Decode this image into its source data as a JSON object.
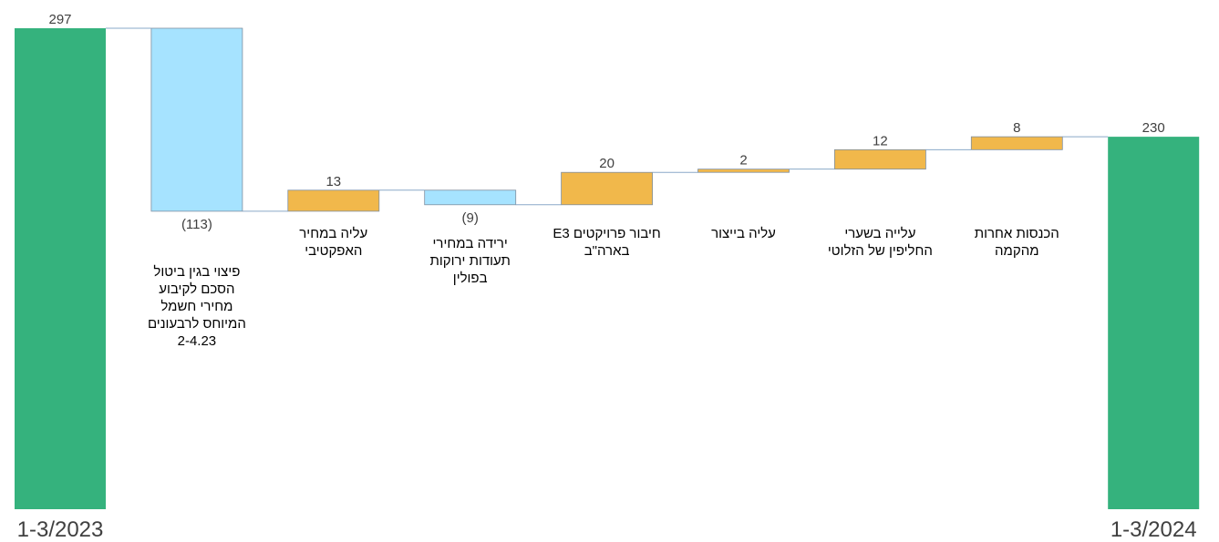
{
  "chart_data": {
    "type": "waterfall",
    "colors": {
      "total": "#35B27D",
      "increase": "#F1B84B",
      "decrease": "#A6E3FF",
      "connector": "#8AA9C8"
    },
    "ylim": [
      0,
      297
    ],
    "bars": [
      {
        "kind": "total",
        "value": 297,
        "value_label": "297",
        "category": "",
        "end_label": "1-3/2023"
      },
      {
        "kind": "decrease",
        "value": -113,
        "value_label": "(113)",
        "category": "פיצוי בגין ביטול הסכם לקיבוע מחירי חשמל המיוחס לרבעונים 2-4.23",
        "end_label": ""
      },
      {
        "kind": "increase",
        "value": 13,
        "value_label": "13",
        "category": "עליה במחיר האפקטיבי",
        "end_label": ""
      },
      {
        "kind": "decrease",
        "value": -9,
        "value_label": "(9)",
        "category": "ירידה במחירי תעודות ירוקות בפולין",
        "end_label": ""
      },
      {
        "kind": "increase",
        "value": 20,
        "value_label": "20",
        "category": "חיבור פרויקטים E3 בארה\"ב",
        "end_label": ""
      },
      {
        "kind": "increase",
        "value": 2,
        "value_label": "2",
        "category": "עליה בייצור",
        "end_label": ""
      },
      {
        "kind": "increase",
        "value": 12,
        "value_label": "12",
        "category": "עלייה בשערי החליפין של הזלוטי",
        "end_label": ""
      },
      {
        "kind": "increase",
        "value": 8,
        "value_label": "8",
        "category": "הכנסות אחרות מהקמה",
        "end_label": ""
      },
      {
        "kind": "total",
        "value": 230,
        "value_label": "230",
        "category": "",
        "end_label": "1-3/2024"
      }
    ]
  }
}
